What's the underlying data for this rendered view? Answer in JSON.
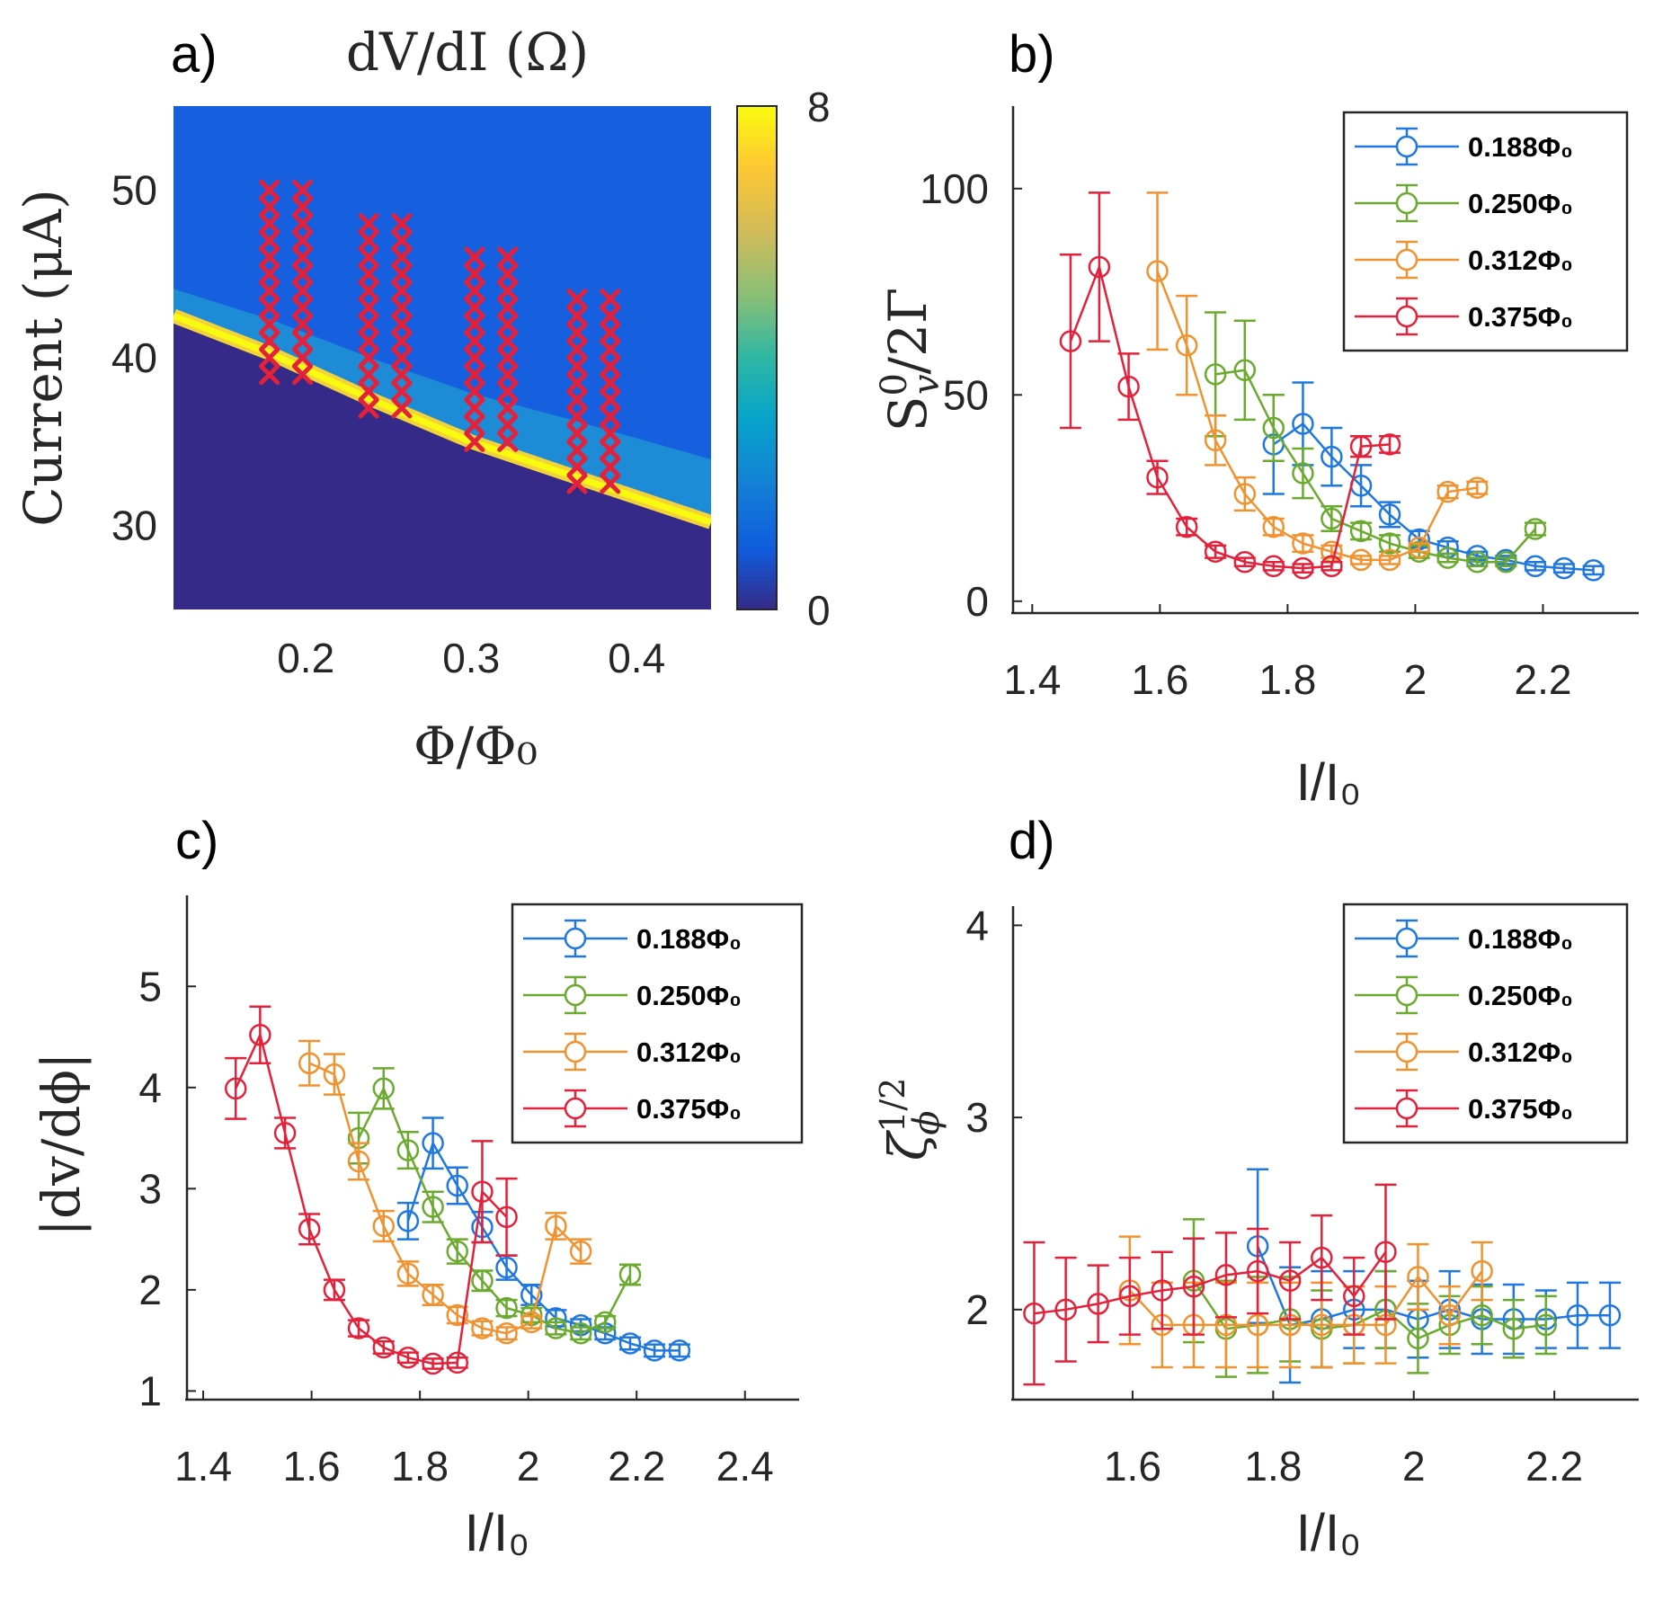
{
  "colors": {
    "c188": "#1f77e0",
    "c250": "#6aaa2e",
    "c312": "#f0922f",
    "c375": "#e3213a",
    "cross": "#e3213a"
  },
  "chart_data": [
    {
      "id": "a",
      "panel": "a)",
      "type": "heatmap",
      "title": "dV/dI (Ω)",
      "xlabel": "Φ/Φ₀",
      "ylabel": "Current (μA)",
      "xlim": [
        0.12,
        0.445
      ],
      "ylim": [
        25,
        55
      ],
      "xticks": [
        0.2,
        0.3,
        0.4
      ],
      "xtick_labels": [
        "0.2",
        "0.3",
        "0.4"
      ],
      "yticks": [
        30,
        40,
        50
      ],
      "ytick_labels": [
        "30",
        "40",
        "50"
      ],
      "colorbar": {
        "min": 0,
        "max": 8,
        "labels": [
          "8",
          "0"
        ],
        "colormap": "parula"
      },
      "critical_edge": {
        "phi": [
          0.12,
          0.18,
          0.24,
          0.3,
          0.36,
          0.445
        ],
        "current": [
          42.5,
          40.2,
          37.5,
          35.0,
          33.0,
          30.2
        ]
      },
      "cross_columns": [
        {
          "phi": 0.178,
          "i_min": 39,
          "i_max": 50
        },
        {
          "phi": 0.198,
          "i_min": 39,
          "i_max": 50
        },
        {
          "phi": 0.238,
          "i_min": 37,
          "i_max": 48
        },
        {
          "phi": 0.258,
          "i_min": 37,
          "i_max": 48
        },
        {
          "phi": 0.302,
          "i_min": 35,
          "i_max": 46
        },
        {
          "phi": 0.322,
          "i_min": 35,
          "i_max": 46
        },
        {
          "phi": 0.364,
          "i_min": 32.5,
          "i_max": 43.5
        },
        {
          "phi": 0.384,
          "i_min": 32.5,
          "i_max": 43.5
        }
      ]
    },
    {
      "id": "b",
      "panel": "b)",
      "type": "line",
      "xlabel": "I/I₀",
      "ylabel": "S⁰ᵥ/2Γ",
      "xlim": [
        1.37,
        2.35
      ],
      "ylim": [
        -2,
        120
      ],
      "xticks": [
        1.4,
        1.6,
        1.8,
        2.0,
        2.2
      ],
      "xtick_labels": [
        "1.4",
        "1.6",
        "1.8",
        "2",
        "2.2"
      ],
      "yticks": [
        0,
        50,
        100
      ],
      "ytick_labels": [
        "0",
        "50",
        "100"
      ],
      "legend_position": "top-right",
      "series": [
        {
          "name": "0.188Φ₀",
          "color_key": "c188",
          "x": [
            1.778,
            1.824,
            1.869,
            1.915,
            1.96,
            2.006,
            2.051,
            2.097,
            2.142,
            2.188,
            2.233,
            2.279
          ],
          "y": [
            38,
            43,
            35,
            28,
            21,
            15,
            13,
            11,
            10,
            8.5,
            8,
            7.5
          ],
          "err": [
            12,
            10,
            7,
            5,
            3,
            2,
            1.5,
            1,
            1,
            1,
            1,
            1
          ]
        },
        {
          "name": "0.250Φ₀",
          "color_key": "c250",
          "x": [
            1.687,
            1.733,
            1.778,
            1.824,
            1.869,
            1.915,
            1.96,
            2.006,
            2.051,
            2.097,
            2.142,
            2.188
          ],
          "y": [
            55,
            56,
            42,
            31,
            20,
            17,
            14,
            12,
            10.5,
            9.5,
            9.5,
            17.5
          ],
          "err": [
            15,
            12,
            8,
            6,
            3,
            2,
            2,
            1.5,
            1,
            1,
            1,
            1.5
          ]
        },
        {
          "name": "0.312Φ₀",
          "color_key": "c312",
          "x": [
            1.596,
            1.642,
            1.687,
            1.733,
            1.778,
            1.824,
            1.869,
            1.915,
            1.96,
            2.006,
            2.051,
            2.097
          ],
          "y": [
            80,
            62,
            39,
            26,
            18,
            14,
            12,
            10,
            10,
            13,
            26.5,
            27.5
          ],
          "err": [
            19,
            12,
            6,
            4,
            2,
            2,
            1.5,
            1,
            1,
            1,
            1.5,
            1.5
          ]
        },
        {
          "name": "0.375Φ₀",
          "color_key": "c375",
          "x": [
            1.46,
            1.505,
            1.551,
            1.596,
            1.642,
            1.687,
            1.733,
            1.778,
            1.824,
            1.869,
            1.915,
            1.96
          ],
          "y": [
            63,
            81,
            52,
            30,
            18,
            12,
            9.5,
            8.5,
            8,
            8.5,
            37.5,
            38
          ],
          "err": [
            21,
            18,
            8,
            4,
            2,
            1.5,
            1,
            1,
            1,
            1,
            2.5,
            2
          ]
        }
      ]
    },
    {
      "id": "c",
      "panel": "c)",
      "type": "line",
      "xlabel": "I/I₀",
      "ylabel": "|dv/dϕ|",
      "xlim": [
        1.37,
        2.5
      ],
      "ylim": [
        0.95,
        5.9
      ],
      "xticks": [
        1.4,
        1.6,
        1.8,
        2.0,
        2.2,
        2.4
      ],
      "xtick_labels": [
        "1.4",
        "1.6",
        "1.8",
        "2",
        "2.2",
        "2.4"
      ],
      "yticks": [
        1,
        2,
        3,
        4,
        5
      ],
      "ytick_labels": [
        "1",
        "2",
        "3",
        "4",
        "5"
      ],
      "legend_position": "top-right",
      "series": [
        {
          "name": "0.188Φ₀",
          "color_key": "c188",
          "x": [
            1.778,
            1.824,
            1.869,
            1.915,
            1.96,
            2.006,
            2.051,
            2.097,
            2.142,
            2.188,
            2.233,
            2.279
          ],
          "y": [
            2.68,
            3.45,
            3.03,
            2.62,
            2.22,
            1.95,
            1.72,
            1.65,
            1.57,
            1.47,
            1.4,
            1.4
          ],
          "err": [
            0.18,
            0.25,
            0.18,
            0.15,
            0.12,
            0.1,
            0.08,
            0.06,
            0.06,
            0.06,
            0.06,
            0.06
          ]
        },
        {
          "name": "0.250Φ₀",
          "color_key": "c250",
          "x": [
            1.687,
            1.733,
            1.778,
            1.824,
            1.869,
            1.915,
            1.96,
            2.006,
            2.051,
            2.097,
            2.142,
            2.188
          ],
          "y": [
            3.5,
            3.99,
            3.38,
            2.82,
            2.38,
            2.09,
            1.82,
            1.75,
            1.62,
            1.57,
            1.68,
            2.15
          ],
          "err": [
            0.25,
            0.2,
            0.18,
            0.15,
            0.12,
            0.1,
            0.08,
            0.07,
            0.06,
            0.06,
            0.06,
            0.1
          ]
        },
        {
          "name": "0.312Φ₀",
          "color_key": "c312",
          "x": [
            1.596,
            1.642,
            1.687,
            1.733,
            1.778,
            1.824,
            1.869,
            1.915,
            1.96,
            2.006,
            2.051,
            2.097
          ],
          "y": [
            4.24,
            4.13,
            3.27,
            2.63,
            2.16,
            1.95,
            1.75,
            1.62,
            1.57,
            1.68,
            2.63,
            2.38
          ],
          "err": [
            0.22,
            0.2,
            0.18,
            0.15,
            0.12,
            0.1,
            0.08,
            0.07,
            0.06,
            0.06,
            0.13,
            0.12
          ]
        },
        {
          "name": "0.375Φ₀",
          "color_key": "c375",
          "x": [
            1.46,
            1.505,
            1.551,
            1.596,
            1.642,
            1.687,
            1.733,
            1.778,
            1.824,
            1.869,
            1.915,
            1.96
          ],
          "y": [
            3.99,
            4.52,
            3.55,
            2.6,
            2.0,
            1.62,
            1.43,
            1.33,
            1.27,
            1.28,
            2.97,
            2.72
          ],
          "err": [
            0.3,
            0.28,
            0.15,
            0.15,
            0.1,
            0.08,
            0.06,
            0.05,
            0.05,
            0.05,
            0.5,
            0.38
          ]
        }
      ]
    },
    {
      "id": "d",
      "panel": "d)",
      "type": "line",
      "xlabel": "I/I₀",
      "ylabel": "ζ^(1/2)_ϕ",
      "xlim": [
        1.43,
        2.32
      ],
      "ylim": [
        1.55,
        4.1
      ],
      "xticks": [
        1.6,
        1.8,
        2.0,
        2.2
      ],
      "xtick_labels": [
        "1.6",
        "1.8",
        "2",
        "2.2"
      ],
      "yticks": [
        2,
        3,
        4
      ],
      "ytick_labels": [
        "2",
        "3",
        "4"
      ],
      "legend_position": "top-right",
      "series": [
        {
          "name": "0.188Φ₀",
          "color_key": "c188",
          "x": [
            1.778,
            1.824,
            1.869,
            1.915,
            1.96,
            2.006,
            2.051,
            2.097,
            2.142,
            2.188,
            2.233,
            2.279
          ],
          "y": [
            2.33,
            1.92,
            1.95,
            2.0,
            2.0,
            1.95,
            2.0,
            1.95,
            1.95,
            1.95,
            1.97,
            1.97
          ],
          "err": [
            0.4,
            0.3,
            0.25,
            0.2,
            0.2,
            0.2,
            0.2,
            0.18,
            0.18,
            0.15,
            0.17,
            0.17
          ]
        },
        {
          "name": "0.250Φ₀",
          "color_key": "c250",
          "x": [
            1.687,
            1.733,
            1.778,
            1.824,
            1.869,
            1.915,
            1.96,
            2.006,
            2.051,
            2.097,
            2.142,
            2.188
          ],
          "y": [
            2.15,
            1.9,
            1.92,
            1.95,
            1.9,
            1.92,
            2.0,
            1.85,
            1.92,
            1.97,
            1.9,
            1.92
          ],
          "err": [
            0.32,
            0.25,
            0.25,
            0.22,
            0.2,
            0.2,
            0.2,
            0.18,
            0.15,
            0.15,
            0.15,
            0.15
          ]
        },
        {
          "name": "0.312Φ₀",
          "color_key": "c312",
          "x": [
            1.596,
            1.642,
            1.687,
            1.733,
            1.778,
            1.824,
            1.869,
            1.915,
            1.96,
            2.006,
            2.051,
            2.097
          ],
          "y": [
            2.1,
            1.92,
            1.92,
            1.92,
            1.92,
            1.92,
            1.92,
            1.92,
            1.92,
            2.17,
            1.97,
            2.2
          ],
          "err": [
            0.28,
            0.22,
            0.22,
            0.22,
            0.22,
            0.22,
            0.22,
            0.2,
            0.2,
            0.17,
            0.15,
            0.15
          ]
        },
        {
          "name": "0.375Φ₀",
          "color_key": "c375",
          "x": [
            1.46,
            1.505,
            1.551,
            1.596,
            1.642,
            1.687,
            1.733,
            1.778,
            1.824,
            1.869,
            1.915,
            1.96
          ],
          "y": [
            1.98,
            2.0,
            2.03,
            2.07,
            2.1,
            2.12,
            2.18,
            2.2,
            2.15,
            2.27,
            2.07,
            2.3
          ],
          "err": [
            0.37,
            0.27,
            0.2,
            0.2,
            0.2,
            0.25,
            0.22,
            0.22,
            0.2,
            0.22,
            0.2,
            0.35
          ]
        }
      ]
    }
  ]
}
